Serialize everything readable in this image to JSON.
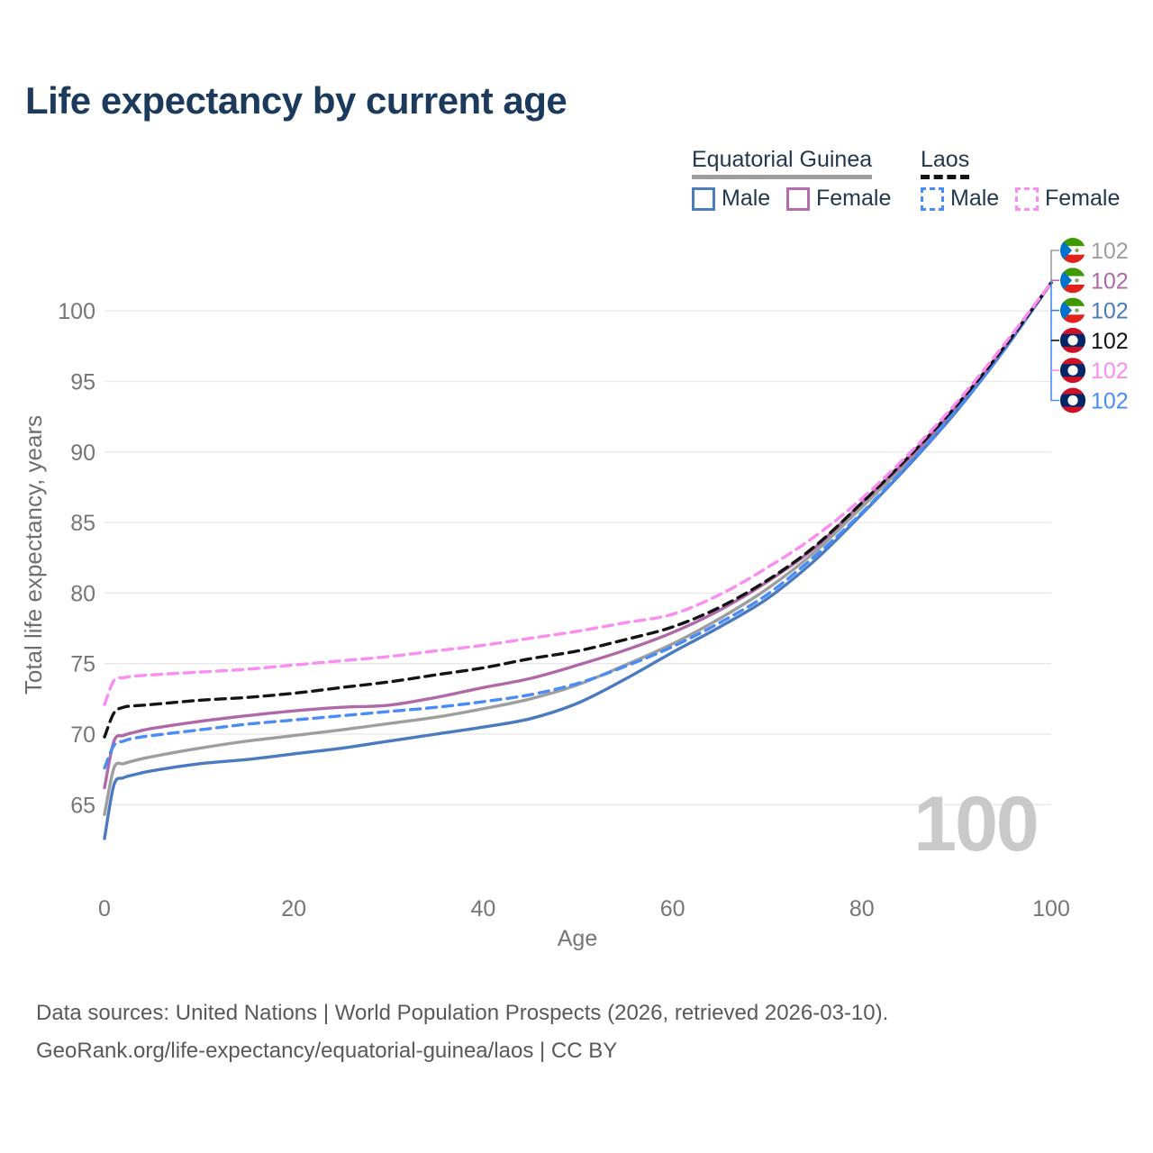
{
  "title": "Life expectancy by current age",
  "legend": {
    "groups": [
      {
        "label": "Equatorial Guinea",
        "style": "solid",
        "underline_color": "#9e9e9e"
      },
      {
        "label": "Laos",
        "style": "dashed",
        "underline_color": "#141414"
      }
    ],
    "items": [
      {
        "group": "Equatorial Guinea",
        "label": "Male",
        "color": "#4d7cbd",
        "style": "solid"
      },
      {
        "group": "Equatorial Guinea",
        "label": "Female",
        "color": "#b36cae",
        "style": "solid"
      },
      {
        "group": "Laos",
        "label": "Male",
        "color": "#4a8cf7",
        "style": "dashed"
      },
      {
        "group": "Laos",
        "label": "Female",
        "color": "#fb8cf2",
        "style": "dashed"
      }
    ]
  },
  "chart_data": {
    "type": "line",
    "title": "Life expectancy by current age",
    "xlabel": "Age",
    "ylabel": "Total life expectancy, years",
    "x_ticks": [
      0,
      20,
      40,
      60,
      80,
      100
    ],
    "y_ticks": [
      65,
      70,
      75,
      80,
      85,
      90,
      95,
      100
    ],
    "xlim": [
      0,
      100
    ],
    "ylim": [
      61.5,
      103
    ],
    "grid": "horizontal",
    "legend_position": "top-right",
    "age_watermark": "100",
    "x": [
      0,
      1,
      2,
      3,
      5,
      10,
      15,
      20,
      25,
      30,
      35,
      40,
      45,
      50,
      55,
      60,
      65,
      70,
      75,
      80,
      85,
      90,
      95,
      100
    ],
    "series": [
      {
        "name": "Equatorial Guinea - Total",
        "country": "equatorial-guinea",
        "sex": "total",
        "color": "#9e9e9e",
        "dash": "solid",
        "end_label": "102",
        "values": [
          64.3,
          67.6,
          67.9,
          68.1,
          68.4,
          69.0,
          69.5,
          69.9,
          70.3,
          70.75,
          71.2,
          71.8,
          72.5,
          73.5,
          74.9,
          76.4,
          78.2,
          80.3,
          82.9,
          86.1,
          89.4,
          93.1,
          97.3,
          102
        ]
      },
      {
        "name": "Equatorial Guinea - Female",
        "country": "equatorial-guinea",
        "sex": "female",
        "color": "#b069a8",
        "dash": "solid",
        "end_label": "102",
        "values": [
          66.2,
          69.5,
          69.9,
          70.1,
          70.4,
          70.9,
          71.3,
          71.65,
          71.9,
          72.05,
          72.6,
          73.3,
          73.95,
          74.9,
          75.95,
          77.2,
          78.8,
          80.8,
          83.2,
          86.4,
          89.6,
          93.2,
          97.4,
          102
        ]
      },
      {
        "name": "Equatorial Guinea - Male",
        "country": "equatorial-guinea",
        "sex": "male",
        "color": "#4a7abf",
        "dash": "solid",
        "end_label": "102",
        "values": [
          62.6,
          66.4,
          66.9,
          67.1,
          67.4,
          67.9,
          68.2,
          68.6,
          69.0,
          69.5,
          70.0,
          70.5,
          71.1,
          72.2,
          73.9,
          75.8,
          77.6,
          79.6,
          82.3,
          85.6,
          89.1,
          92.9,
          97.2,
          102
        ]
      },
      {
        "name": "Laos - Total",
        "country": "laos",
        "sex": "total",
        "color": "#141414",
        "dash": "dashed",
        "end_label": "102",
        "values": [
          69.8,
          71.5,
          71.9,
          72.0,
          72.1,
          72.4,
          72.6,
          72.9,
          73.3,
          73.7,
          74.2,
          74.7,
          75.35,
          75.9,
          76.7,
          77.6,
          79.0,
          80.9,
          83.3,
          86.4,
          89.7,
          93.3,
          97.4,
          102
        ]
      },
      {
        "name": "Laos - Female",
        "country": "laos",
        "sex": "female",
        "color": "#fb8cf2",
        "dash": "dashed",
        "end_label": "102",
        "values": [
          72.1,
          73.8,
          74.0,
          74.1,
          74.2,
          74.4,
          74.6,
          74.9,
          75.2,
          75.5,
          75.9,
          76.3,
          76.8,
          77.3,
          77.9,
          78.5,
          79.9,
          81.8,
          84.0,
          86.7,
          89.9,
          93.5,
          97.6,
          102
        ]
      },
      {
        "name": "Laos - Male",
        "country": "laos",
        "sex": "male",
        "color": "#4a8cf7",
        "dash": "dashed",
        "end_label": "102",
        "values": [
          67.6,
          69.2,
          69.5,
          69.7,
          69.9,
          70.3,
          70.7,
          71.0,
          71.3,
          71.6,
          71.9,
          72.3,
          72.8,
          73.6,
          74.8,
          76.2,
          77.9,
          79.9,
          82.6,
          85.7,
          89.2,
          93.0,
          97.2,
          102
        ]
      }
    ]
  },
  "footer": {
    "line1": "Data sources: United Nations | World Population Prospects (2026, retrieved 2026-03-10).",
    "line2": "GeoRank.org/life-expectancy/equatorial-guinea/laos | CC BY"
  }
}
